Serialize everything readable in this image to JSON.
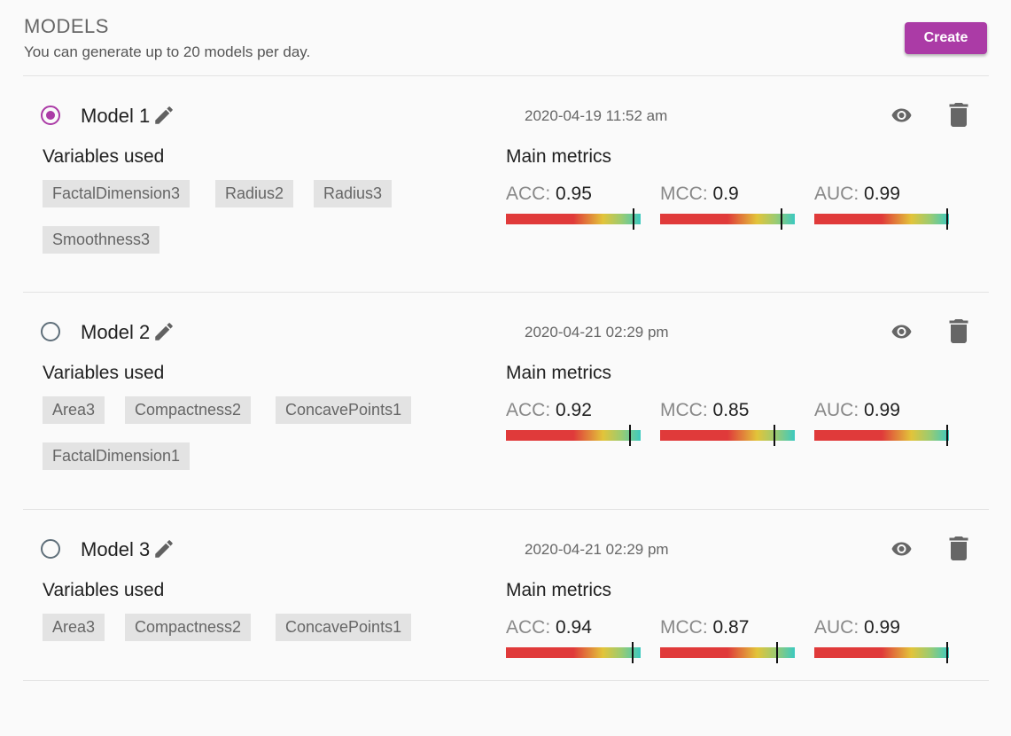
{
  "header": {
    "title": "MODELS",
    "subtitle": "You can generate up to 20 models per day.",
    "create_label": "Create"
  },
  "labels": {
    "variables_used": "Variables used",
    "main_metrics": "Main metrics"
  },
  "colors": {
    "accent": "#ab3ba6",
    "chip_bg": "#e3e3e3",
    "metric_bar_low": "#e03a3a",
    "metric_bar_mid": "#e2c43a",
    "metric_bar_high": "#3cc9c0"
  },
  "models": [
    {
      "name": "Model 1",
      "selected": true,
      "date": "2020-04-19 11:52 am",
      "variables": [
        "FactalDimension3",
        "Radius2",
        "Radius3",
        "Smoothness3"
      ],
      "metrics": [
        {
          "label": "ACC:",
          "value": "0.95"
        },
        {
          "label": "MCC:",
          "value": "0.9"
        },
        {
          "label": "AUC:",
          "value": "0.99"
        }
      ]
    },
    {
      "name": "Model 2",
      "selected": false,
      "date": "2020-04-21 02:29 pm",
      "variables": [
        "Area3",
        "Compactness2",
        "ConcavePoints1",
        "FactalDimension1"
      ],
      "metrics": [
        {
          "label": "ACC:",
          "value": "0.92"
        },
        {
          "label": "MCC:",
          "value": "0.85"
        },
        {
          "label": "AUC:",
          "value": "0.99"
        }
      ]
    },
    {
      "name": "Model 3",
      "selected": false,
      "date": "2020-04-21 02:29 pm",
      "variables": [
        "Area3",
        "Compactness2",
        "ConcavePoints1"
      ],
      "metrics": [
        {
          "label": "ACC:",
          "value": "0.94"
        },
        {
          "label": "MCC:",
          "value": "0.87"
        },
        {
          "label": "AUC:",
          "value": "0.99"
        }
      ]
    }
  ],
  "icons": {
    "edit": "pencil-icon",
    "view": "eye-icon",
    "delete": "trash-icon"
  }
}
